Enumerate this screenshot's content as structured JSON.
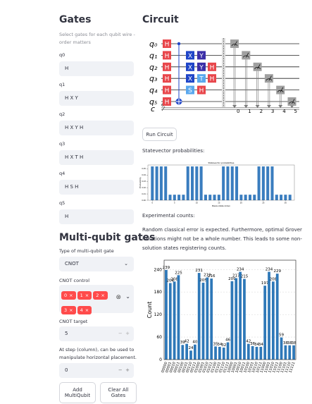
{
  "sidebar": {
    "title": "Gates",
    "caption": "Select gates for each qubit wire - order matters",
    "wire_inputs": [
      {
        "label": "q0",
        "value": "H"
      },
      {
        "label": "q1",
        "value": "H X Y"
      },
      {
        "label": "q2",
        "value": "H X Y H"
      },
      {
        "label": "q3",
        "value": "H X T H"
      },
      {
        "label": "q4",
        "value": "H S H"
      },
      {
        "label": "q5",
        "value": "H"
      }
    ],
    "multi_title": "Multi-qubit gates",
    "gate_type": {
      "label": "Type of multi-qubit gate",
      "value": "CNOT"
    },
    "control": {
      "label": "CNOT control",
      "tags": [
        0,
        1,
        2,
        3,
        4
      ]
    },
    "target": {
      "label": "CNOT target",
      "value": 5
    },
    "step": {
      "label": "At step (column), can be used to manipulate horizontal placement.",
      "value": 0
    },
    "buttons": [
      "Add MultiQubit",
      "Clear All Gates"
    ]
  },
  "main": {
    "title": "Circuit",
    "run_button": "Run Circuit",
    "statevector_label": "Statevector probabilities:",
    "counts_label": "Experimental counts:",
    "note": "Random classical error is expected. Furthermore, optimal Grover iterations might not be a whole number. This leads to some non-solution states registering counts."
  },
  "circuit": {
    "classical_label": "c",
    "classical_width": 6,
    "wires": [
      {
        "label": "q₀",
        "gates": [
          {
            "label": "H",
            "color": "#e8464b"
          },
          null,
          null,
          null
        ]
      },
      {
        "label": "q₁",
        "gates": [
          {
            "label": "H",
            "color": "#e8464b"
          },
          {
            "label": "X",
            "color": "#1f45c8"
          },
          {
            "label": "Y",
            "color": "#3b2fa8"
          },
          null
        ]
      },
      {
        "label": "q₂",
        "gates": [
          {
            "label": "H",
            "color": "#e8464b"
          },
          {
            "label": "X",
            "color": "#1f45c8"
          },
          {
            "label": "Y",
            "color": "#3b2fa8"
          },
          {
            "label": "H",
            "color": "#e8464b"
          }
        ]
      },
      {
        "label": "q₃",
        "gates": [
          {
            "label": "H",
            "color": "#e8464b"
          },
          {
            "label": "X",
            "color": "#1f45c8"
          },
          {
            "label": "T",
            "color": "#5aa8ee"
          },
          {
            "label": "H",
            "color": "#e8464b"
          }
        ]
      },
      {
        "label": "q₄",
        "gates": [
          {
            "label": "H",
            "color": "#e8464b"
          },
          {
            "label": "S",
            "color": "#5aa8ee"
          },
          {
            "label": "H",
            "color": "#e8464b"
          },
          null
        ]
      },
      {
        "label": "q₅",
        "gates": [
          {
            "label": "H",
            "color": "#e8464b"
          },
          null,
          null,
          null
        ]
      }
    ],
    "measure_bits": [
      0,
      1,
      2,
      3,
      4,
      5
    ]
  },
  "chart_data": [
    {
      "type": "bar",
      "title": "Statevector probabilities",
      "xlabel": "Basis state index",
      "ylabel": "Probability",
      "color": "#3a7dbf",
      "x": [
        0,
        1,
        2,
        3,
        4,
        5,
        6,
        7,
        8,
        9,
        10,
        11,
        12,
        13,
        14,
        15,
        16,
        17,
        18,
        19,
        20,
        21,
        22,
        23,
        24,
        25,
        26,
        27,
        28,
        29,
        30,
        31
      ],
      "values": [
        0.0537,
        0.0537,
        0.0537,
        0.0537,
        0.0088,
        0.0088,
        0.0088,
        0.0088,
        0.0537,
        0.0537,
        0.0537,
        0.0537,
        0.0088,
        0.0088,
        0.0088,
        0.0088,
        0.0537,
        0.0537,
        0.0537,
        0.0537,
        0.0088,
        0.0088,
        0.0088,
        0.0088,
        0.0537,
        0.0537,
        0.0537,
        0.0537,
        0.0088,
        0.0088,
        0.0088,
        0.0088
      ],
      "xlim": [
        -1,
        32
      ],
      "xticks": [
        0,
        5,
        10,
        15,
        20,
        25,
        30
      ],
      "ylim": [
        0,
        0.056
      ],
      "yticks": [
        {
          "value": 0,
          "label": "0.00"
        },
        {
          "value": 0.01,
          "label": "0.01"
        },
        {
          "value": 0.02,
          "label": "0.02"
        },
        {
          "value": 0.03,
          "label": "0.03"
        },
        {
          "value": 0.04,
          "label": "0.04"
        },
        {
          "value": 0.05,
          "label": "0.05"
        }
      ]
    },
    {
      "type": "bar",
      "ylabel": "Count",
      "color": "#2e78b8",
      "grid": true,
      "categories": [
        "00000",
        "00001",
        "00010",
        "00011",
        "00100",
        "00101",
        "00110",
        "00111",
        "01000",
        "01001",
        "01010",
        "01011",
        "01100",
        "01101",
        "01110",
        "01111",
        "10000",
        "10001",
        "10010",
        "10011",
        "10100",
        "10101",
        "10110",
        "10111",
        "11000",
        "11001",
        "11010",
        "11011",
        "11100",
        "11101",
        "11110",
        "11111"
      ],
      "values": [
        239,
        204,
        208,
        225,
        39,
        42,
        24,
        40,
        231,
        205,
        219,
        216,
        35,
        34,
        32,
        46,
        209,
        217,
        234,
        215,
        42,
        36,
        34,
        34,
        197,
        234,
        208,
        229,
        59,
        38,
        38,
        38
      ],
      "ylim": [
        0,
        265
      ],
      "yticks": [
        0,
        60,
        120,
        180,
        240
      ]
    }
  ]
}
